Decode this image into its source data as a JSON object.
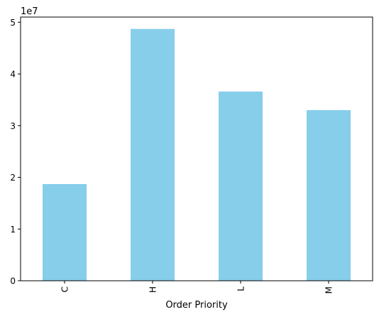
{
  "chart_data": {
    "type": "bar",
    "categories": [
      "C",
      "H",
      "L",
      "M"
    ],
    "values": [
      18700000,
      48700000,
      36600000,
      33000000
    ],
    "offset_label": "1e7",
    "xlabel": "Order Priority",
    "ylabel": "",
    "ylim": [
      0,
      51000000
    ],
    "yticks": [
      0,
      10000000,
      20000000,
      30000000,
      40000000,
      50000000
    ],
    "ytick_labels": [
      "0",
      "1",
      "2",
      "3",
      "4",
      "5"
    ],
    "bar_color": "#87CEEB",
    "grid": false,
    "legend": "none"
  }
}
